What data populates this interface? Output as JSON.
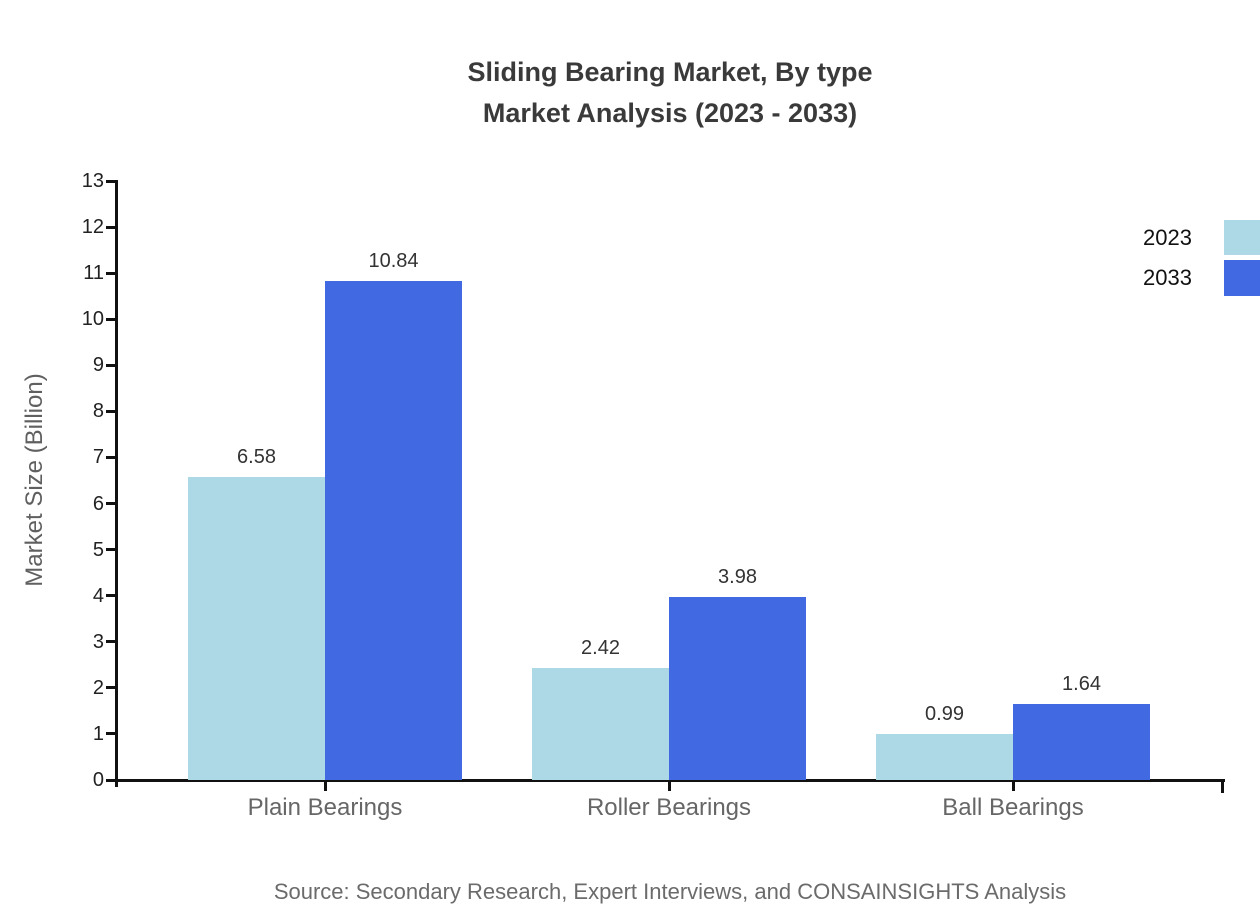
{
  "title": {
    "line1": "Sliding Bearing Market, By type",
    "line2": "Market Analysis (2023 - 2033)"
  },
  "footer": {
    "source": "Source: Secondary Research, Expert Interviews, and CONSAINSIGHTS Analysis"
  },
  "chart_data": {
    "type": "bar",
    "title": "Sliding Bearing Market, By type — Market Analysis (2023 - 2033)",
    "categories": [
      "Plain Bearings",
      "Roller Bearings",
      "Ball Bearings"
    ],
    "series": [
      {
        "name": "2023",
        "color": "#ADD8E6",
        "values": [
          6.58,
          2.42,
          0.99
        ]
      },
      {
        "name": "2033",
        "color": "#4169E1",
        "values": [
          10.84,
          3.98,
          1.64
        ]
      }
    ],
    "xlabel": "",
    "ylabel": "Market Size (Billion)",
    "ylim": [
      0,
      13
    ],
    "y_tick_step": 1,
    "grid": false,
    "legend_position": "top-right",
    "value_labels": true,
    "axis_color": "#111111",
    "text_colors": {
      "title": "#3a3a3a",
      "tick_labels": "#222222",
      "value_labels": "#333333",
      "category_labels": "#666666",
      "axis_title": "#606060",
      "footer": "#6b6b6b"
    }
  }
}
